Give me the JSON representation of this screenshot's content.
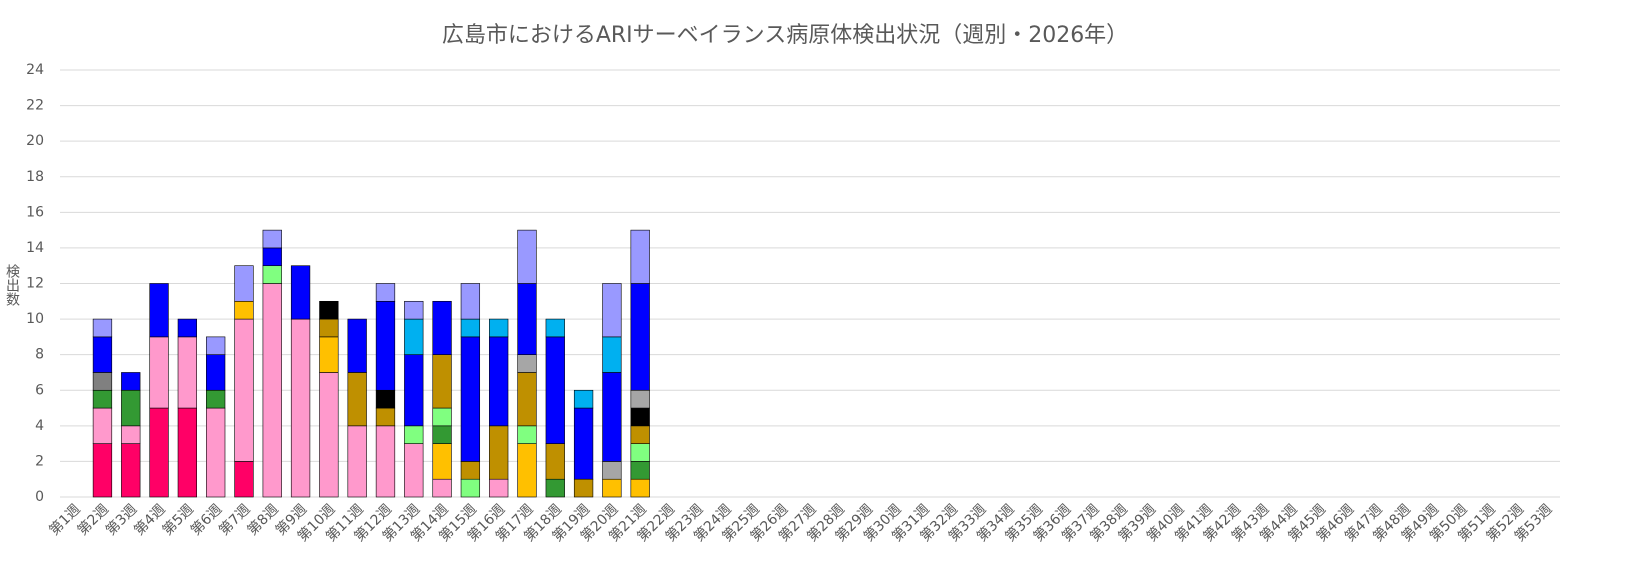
{
  "chart_data": {
    "type": "stacked_bar",
    "title": "広島市におけるARIサーベイランス病原体検出状況（週別・2026年）",
    "y_label": "検出数",
    "categories": [
      "第1週",
      "第2週",
      "第3週",
      "第4週",
      "第5週",
      "第6週",
      "第7週",
      "第8週",
      "第9週",
      "第10週",
      "第11週",
      "第12週",
      "第13週",
      "第14週",
      "第15週",
      "第16週",
      "第17週",
      "第18週",
      "第19週",
      "第20週",
      "第21週",
      "第22週",
      "第23週",
      "第24週",
      "第25週",
      "第26週",
      "第27週",
      "第28週",
      "第29週",
      "第30週",
      "第31週",
      "第32週",
      "第33週",
      "第34週",
      "第35週",
      "第36週",
      "第37週",
      "第38週",
      "第39週",
      "第40週",
      "第41週",
      "第42週",
      "第43週",
      "第44週",
      "第45週",
      "第46週",
      "第47週",
      "第48週",
      "第49週",
      "第50週",
      "第51週",
      "第52週",
      "第53週"
    ],
    "series": [
      {
        "color": "#ff0066",
        "values": [
          null,
          3,
          3,
          5,
          5,
          null,
          2,
          null,
          null,
          null,
          null,
          null,
          null,
          null,
          null,
          null,
          null,
          null,
          null,
          null,
          null,
          null,
          null,
          null,
          null,
          null,
          null,
          null,
          null,
          null,
          null,
          null,
          null,
          null,
          null,
          null,
          null,
          null,
          null,
          null,
          null,
          null,
          null,
          null,
          null,
          null,
          null,
          null,
          null,
          null,
          null,
          null,
          null
        ]
      },
      {
        "color": "#ff99cc",
        "values": [
          null,
          2,
          1,
          4,
          4,
          5,
          8,
          12,
          10,
          7,
          4,
          4,
          3,
          1,
          null,
          1,
          null,
          null,
          null,
          null,
          null,
          null,
          null,
          null,
          null,
          null,
          null,
          null,
          null,
          null,
          null,
          null,
          null,
          null,
          null,
          null,
          null,
          null,
          null,
          null,
          null,
          null,
          null,
          null,
          null,
          null,
          null,
          null,
          null,
          null,
          null,
          null,
          null
        ]
      },
      {
        "color": "#ffc000",
        "values": [
          null,
          null,
          null,
          null,
          null,
          null,
          1,
          null,
          null,
          2,
          null,
          null,
          null,
          2,
          null,
          null,
          3,
          null,
          null,
          1,
          1,
          null,
          null,
          null,
          null,
          null,
          null,
          null,
          null,
          null,
          null,
          null,
          null,
          null,
          null,
          null,
          null,
          null,
          null,
          null,
          null,
          null,
          null,
          null,
          null,
          null,
          null,
          null,
          null,
          null,
          null,
          null,
          null
        ]
      },
      {
        "color": "#339933",
        "values": [
          null,
          1,
          2,
          null,
          null,
          1,
          null,
          null,
          null,
          null,
          null,
          null,
          null,
          1,
          null,
          null,
          null,
          1,
          null,
          null,
          1,
          null,
          null,
          null,
          null,
          null,
          null,
          null,
          null,
          null,
          null,
          null,
          null,
          null,
          null,
          null,
          null,
          null,
          null,
          null,
          null,
          null,
          null,
          null,
          null,
          null,
          null,
          null,
          null,
          null,
          null,
          null,
          null
        ]
      },
      {
        "color": "#80ff80",
        "values": [
          null,
          null,
          null,
          null,
          null,
          null,
          null,
          1,
          null,
          null,
          null,
          null,
          1,
          1,
          1,
          null,
          1,
          null,
          null,
          null,
          1,
          null,
          null,
          null,
          null,
          null,
          null,
          null,
          null,
          null,
          null,
          null,
          null,
          null,
          null,
          null,
          null,
          null,
          null,
          null,
          null,
          null,
          null,
          null,
          null,
          null,
          null,
          null,
          null,
          null,
          null,
          null,
          null
        ]
      },
      {
        "color": "#bf9000",
        "values": [
          null,
          null,
          null,
          null,
          null,
          null,
          null,
          null,
          null,
          1,
          3,
          1,
          null,
          3,
          1,
          3,
          3,
          2,
          1,
          null,
          1,
          null,
          null,
          null,
          null,
          null,
          null,
          null,
          null,
          null,
          null,
          null,
          null,
          null,
          null,
          null,
          null,
          null,
          null,
          null,
          null,
          null,
          null,
          null,
          null,
          null,
          null,
          null,
          null,
          null,
          null,
          null,
          null
        ]
      },
      {
        "color": "#000000",
        "values": [
          null,
          null,
          null,
          null,
          null,
          null,
          null,
          null,
          null,
          1,
          null,
          1,
          null,
          null,
          null,
          null,
          null,
          null,
          null,
          null,
          1,
          null,
          null,
          null,
          null,
          null,
          null,
          null,
          null,
          null,
          null,
          null,
          null,
          null,
          null,
          null,
          null,
          null,
          null,
          null,
          null,
          null,
          null,
          null,
          null,
          null,
          null,
          null,
          null,
          null,
          null,
          null,
          null
        ]
      },
      {
        "color": "#808080",
        "values": [
          null,
          1,
          null,
          null,
          null,
          null,
          null,
          null,
          null,
          null,
          null,
          null,
          null,
          null,
          null,
          null,
          null,
          null,
          null,
          null,
          null,
          null,
          null,
          null,
          null,
          null,
          null,
          null,
          null,
          null,
          null,
          null,
          null,
          null,
          null,
          null,
          null,
          null,
          null,
          null,
          null,
          null,
          null,
          null,
          null,
          null,
          null,
          null,
          null,
          null,
          null,
          null,
          null
        ]
      },
      {
        "color": "#a6a6a6",
        "values": [
          null,
          null,
          null,
          null,
          null,
          null,
          null,
          null,
          null,
          null,
          null,
          null,
          null,
          null,
          null,
          null,
          1,
          null,
          null,
          1,
          1,
          null,
          null,
          null,
          null,
          null,
          null,
          null,
          null,
          null,
          null,
          null,
          null,
          null,
          null,
          null,
          null,
          null,
          null,
          null,
          null,
          null,
          null,
          null,
          null,
          null,
          null,
          null,
          null,
          null,
          null,
          null,
          null
        ]
      },
      {
        "color": "#0000ff",
        "values": [
          null,
          2,
          1,
          3,
          1,
          2,
          null,
          1,
          3,
          null,
          3,
          5,
          4,
          3,
          7,
          5,
          4,
          6,
          4,
          5,
          6,
          null,
          null,
          null,
          null,
          null,
          null,
          null,
          null,
          null,
          null,
          null,
          null,
          null,
          null,
          null,
          null,
          null,
          null,
          null,
          null,
          null,
          null,
          null,
          null,
          null,
          null,
          null,
          null,
          null,
          null,
          null,
          null
        ]
      },
      {
        "color": "#00b0f0",
        "values": [
          null,
          null,
          null,
          null,
          null,
          null,
          null,
          null,
          null,
          null,
          null,
          null,
          2,
          null,
          1,
          1,
          null,
          1,
          1,
          2,
          null,
          null,
          null,
          null,
          null,
          null,
          null,
          null,
          null,
          null,
          null,
          null,
          null,
          null,
          null,
          null,
          null,
          null,
          null,
          null,
          null,
          null,
          null,
          null,
          null,
          null,
          null,
          null,
          null,
          null,
          null,
          null,
          null
        ]
      },
      {
        "color": "#9999ff",
        "values": [
          null,
          1,
          null,
          null,
          null,
          1,
          2,
          1,
          null,
          null,
          null,
          1,
          1,
          null,
          2,
          null,
          3,
          null,
          null,
          3,
          3,
          null,
          null,
          null,
          null,
          null,
          null,
          null,
          null,
          null,
          null,
          null,
          null,
          null,
          null,
          null,
          null,
          null,
          null,
          null,
          null,
          null,
          null,
          null,
          null,
          null,
          null,
          null,
          null,
          null,
          null,
          null,
          null
        ]
      }
    ],
    "ylim": [
      0,
      24
    ],
    "yticks": [
      0,
      2,
      4,
      6,
      8,
      10,
      12,
      14,
      16,
      18,
      20,
      22,
      24
    ],
    "grid": true
  }
}
